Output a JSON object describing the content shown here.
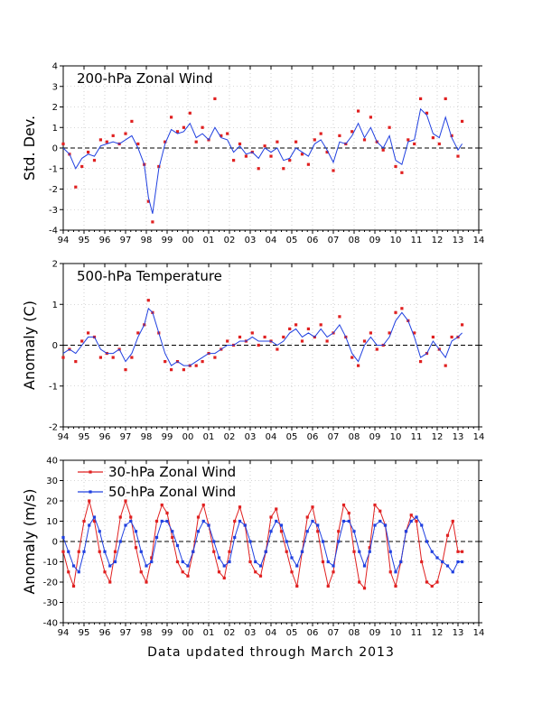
{
  "footer": "Data updated through March 2013",
  "chart_data": [
    {
      "type": "line",
      "title": "200-hPa Zonal Wind",
      "ylabel": "Std. Dev.",
      "xlim": [
        1994,
        2014
      ],
      "ylim": [
        -4,
        4
      ],
      "y_ticks": [
        -4,
        -3,
        -2,
        -1,
        0,
        1,
        2,
        3,
        4
      ],
      "x_tick_labels": [
        "94",
        "95",
        "96",
        "97",
        "98",
        "99",
        "00",
        "01",
        "02",
        "03",
        "04",
        "05",
        "06",
        "07",
        "08",
        "09",
        "10",
        "11",
        "12",
        "13",
        "14"
      ],
      "grid": true,
      "series": [
        {
          "color": "#e02020",
          "style": "points",
          "x": [
            1994.0,
            1994.3,
            1994.6,
            1994.9,
            1995.2,
            1995.5,
            1995.8,
            1996.1,
            1996.4,
            1996.7,
            1997.0,
            1997.3,
            1997.6,
            1997.9,
            1998.1,
            1998.3,
            1998.6,
            1998.9,
            1999.2,
            1999.5,
            1999.8,
            2000.1,
            2000.4,
            2000.7,
            2001.0,
            2001.3,
            2001.6,
            2001.9,
            2002.2,
            2002.5,
            2002.8,
            2003.1,
            2003.4,
            2003.7,
            2004.0,
            2004.3,
            2004.6,
            2004.9,
            2005.2,
            2005.5,
            2005.8,
            2006.1,
            2006.4,
            2006.7,
            2007.0,
            2007.3,
            2007.6,
            2007.9,
            2008.2,
            2008.5,
            2008.8,
            2009.1,
            2009.4,
            2009.7,
            2010.0,
            2010.3,
            2010.6,
            2010.9,
            2011.2,
            2011.5,
            2011.8,
            2012.1,
            2012.4,
            2012.7,
            2013.0,
            2013.2
          ],
          "y": [
            0.2,
            -0.3,
            -1.9,
            -0.9,
            -0.2,
            -0.6,
            0.4,
            0.3,
            0.6,
            0.2,
            0.7,
            1.3,
            0.2,
            -0.8,
            -2.6,
            -3.6,
            -0.9,
            0.3,
            1.5,
            0.8,
            1.0,
            1.7,
            0.3,
            1.0,
            0.4,
            2.4,
            0.6,
            0.7,
            -0.6,
            0.2,
            -0.4,
            -0.2,
            -1.0,
            0.1,
            -0.4,
            0.3,
            -1.0,
            -0.6,
            0.3,
            -0.3,
            -0.8,
            0.4,
            0.7,
            -0.2,
            -1.1,
            0.6,
            0.2,
            0.8,
            1.8,
            0.4,
            1.5,
            0.3,
            -0.1,
            1.0,
            -0.9,
            -1.2,
            0.4,
            0.2,
            2.4,
            1.7,
            0.5,
            0.2,
            2.4,
            0.6,
            -0.4,
            1.3
          ]
        },
        {
          "color": "#2040e0",
          "style": "line",
          "x": [
            1994.0,
            1994.3,
            1994.6,
            1994.9,
            1995.2,
            1995.5,
            1995.8,
            1996.1,
            1996.4,
            1996.7,
            1997.0,
            1997.3,
            1997.6,
            1997.9,
            1998.1,
            1998.3,
            1998.6,
            1998.9,
            1999.2,
            1999.5,
            1999.8,
            2000.1,
            2000.4,
            2000.7,
            2001.0,
            2001.3,
            2001.6,
            2001.9,
            2002.2,
            2002.5,
            2002.8,
            2003.1,
            2003.4,
            2003.7,
            2004.0,
            2004.3,
            2004.6,
            2004.9,
            2005.2,
            2005.5,
            2005.8,
            2006.1,
            2006.4,
            2006.7,
            2007.0,
            2007.3,
            2007.6,
            2007.9,
            2008.2,
            2008.5,
            2008.8,
            2009.1,
            2009.4,
            2009.7,
            2010.0,
            2010.3,
            2010.6,
            2010.9,
            2011.2,
            2011.5,
            2011.8,
            2012.1,
            2012.4,
            2012.7,
            2013.0,
            2013.2
          ],
          "y": [
            0.0,
            -0.3,
            -1.0,
            -0.5,
            -0.3,
            -0.4,
            0.1,
            0.2,
            0.3,
            0.2,
            0.4,
            0.6,
            0.0,
            -0.8,
            -2.4,
            -3.2,
            -1.0,
            0.2,
            0.9,
            0.7,
            0.8,
            1.2,
            0.5,
            0.7,
            0.4,
            1.0,
            0.5,
            0.4,
            -0.2,
            0.1,
            -0.3,
            -0.2,
            -0.5,
            0.0,
            -0.2,
            0.0,
            -0.6,
            -0.5,
            0.0,
            -0.2,
            -0.4,
            0.2,
            0.4,
            -0.1,
            -0.7,
            0.3,
            0.2,
            0.6,
            1.2,
            0.5,
            1.0,
            0.3,
            0.0,
            0.6,
            -0.6,
            -0.8,
            0.3,
            0.4,
            1.9,
            1.6,
            0.7,
            0.5,
            1.5,
            0.5,
            -0.1,
            0.2
          ]
        }
      ]
    },
    {
      "type": "line",
      "title": "500-hPa Temperature",
      "ylabel": "Anomaly (C)",
      "xlim": [
        1994,
        2014
      ],
      "ylim": [
        -2,
        2
      ],
      "y_ticks": [
        -2,
        -1,
        0,
        1,
        2
      ],
      "x_tick_labels": [
        "94",
        "95",
        "96",
        "97",
        "98",
        "99",
        "00",
        "01",
        "02",
        "03",
        "04",
        "05",
        "06",
        "07",
        "08",
        "09",
        "10",
        "11",
        "12",
        "13",
        "14"
      ],
      "grid": true,
      "series": [
        {
          "color": "#e02020",
          "style": "points",
          "x": [
            1994.0,
            1994.3,
            1994.6,
            1994.9,
            1995.2,
            1995.5,
            1995.8,
            1996.1,
            1996.4,
            1996.7,
            1997.0,
            1997.3,
            1997.6,
            1997.9,
            1998.1,
            1998.3,
            1998.6,
            1998.9,
            1999.2,
            1999.5,
            1999.8,
            2000.1,
            2000.4,
            2000.7,
            2001.0,
            2001.3,
            2001.6,
            2001.9,
            2002.2,
            2002.5,
            2002.8,
            2003.1,
            2003.4,
            2003.7,
            2004.0,
            2004.3,
            2004.6,
            2004.9,
            2005.2,
            2005.5,
            2005.8,
            2006.1,
            2006.4,
            2006.7,
            2007.0,
            2007.3,
            2007.6,
            2007.9,
            2008.2,
            2008.5,
            2008.8,
            2009.1,
            2009.4,
            2009.7,
            2010.0,
            2010.3,
            2010.6,
            2010.9,
            2011.2,
            2011.5,
            2011.8,
            2012.1,
            2012.4,
            2012.7,
            2013.0,
            2013.2
          ],
          "y": [
            -0.3,
            -0.1,
            -0.4,
            0.1,
            0.3,
            0.2,
            -0.3,
            -0.2,
            -0.3,
            -0.1,
            -0.6,
            -0.3,
            0.3,
            0.5,
            1.1,
            0.8,
            0.3,
            -0.4,
            -0.6,
            -0.4,
            -0.6,
            -0.5,
            -0.5,
            -0.4,
            -0.2,
            -0.3,
            -0.1,
            0.1,
            0.0,
            0.2,
            0.1,
            0.3,
            0.0,
            0.2,
            0.1,
            -0.1,
            0.2,
            0.4,
            0.5,
            0.1,
            0.4,
            0.2,
            0.5,
            0.1,
            0.3,
            0.7,
            0.2,
            -0.3,
            -0.5,
            0.1,
            0.3,
            -0.1,
            0.0,
            0.3,
            0.8,
            0.9,
            0.6,
            0.3,
            -0.4,
            -0.2,
            0.2,
            -0.1,
            -0.5,
            0.2,
            0.2,
            0.5
          ]
        },
        {
          "color": "#2040e0",
          "style": "line",
          "x": [
            1994.0,
            1994.3,
            1994.6,
            1994.9,
            1995.2,
            1995.5,
            1995.8,
            1996.1,
            1996.4,
            1996.7,
            1997.0,
            1997.3,
            1997.6,
            1997.9,
            1998.1,
            1998.3,
            1998.6,
            1998.9,
            1999.2,
            1999.5,
            1999.8,
            2000.1,
            2000.4,
            2000.7,
            2001.0,
            2001.3,
            2001.6,
            2001.9,
            2002.2,
            2002.5,
            2002.8,
            2003.1,
            2003.4,
            2003.7,
            2004.0,
            2004.3,
            2004.6,
            2004.9,
            2005.2,
            2005.5,
            2005.8,
            2006.1,
            2006.4,
            2006.7,
            2007.0,
            2007.3,
            2007.6,
            2007.9,
            2008.2,
            2008.5,
            2008.8,
            2009.1,
            2009.4,
            2009.7,
            2010.0,
            2010.3,
            2010.6,
            2010.9,
            2011.2,
            2011.5,
            2011.8,
            2012.1,
            2012.4,
            2012.7,
            2013.0,
            2013.2
          ],
          "y": [
            -0.2,
            -0.1,
            -0.2,
            0.0,
            0.2,
            0.2,
            -0.1,
            -0.2,
            -0.2,
            -0.1,
            -0.4,
            -0.2,
            0.2,
            0.5,
            0.9,
            0.8,
            0.3,
            -0.2,
            -0.5,
            -0.4,
            -0.5,
            -0.5,
            -0.4,
            -0.3,
            -0.2,
            -0.2,
            -0.1,
            0.0,
            0.0,
            0.1,
            0.1,
            0.2,
            0.1,
            0.1,
            0.1,
            0.0,
            0.1,
            0.3,
            0.4,
            0.2,
            0.3,
            0.2,
            0.4,
            0.2,
            0.3,
            0.5,
            0.2,
            -0.2,
            -0.4,
            0.0,
            0.2,
            0.0,
            0.0,
            0.2,
            0.6,
            0.8,
            0.6,
            0.2,
            -0.3,
            -0.2,
            0.1,
            -0.1,
            -0.3,
            0.1,
            0.2,
            0.3
          ]
        }
      ]
    },
    {
      "type": "line",
      "title": "",
      "ylabel": "Anomaly (m/s)",
      "xlim": [
        1994,
        2014
      ],
      "ylim": [
        -40,
        40
      ],
      "y_ticks": [
        -40,
        -30,
        -20,
        -10,
        0,
        10,
        20,
        30,
        40
      ],
      "x_tick_labels": [
        "94",
        "95",
        "96",
        "97",
        "98",
        "99",
        "00",
        "01",
        "02",
        "03",
        "04",
        "05",
        "06",
        "07",
        "08",
        "09",
        "10",
        "11",
        "12",
        "13",
        "14"
      ],
      "grid": true,
      "legend": "top-left",
      "series": [
        {
          "name": "30-hPa Zonal Wind",
          "color": "#e02020",
          "style": "line+points",
          "x": [
            1994.0,
            1994.25,
            1994.5,
            1994.75,
            1995.0,
            1995.25,
            1995.5,
            1995.75,
            1996.0,
            1996.25,
            1996.5,
            1996.75,
            1997.0,
            1997.25,
            1997.5,
            1997.75,
            1998.0,
            1998.25,
            1998.5,
            1998.75,
            1999.0,
            1999.25,
            1999.5,
            1999.75,
            2000.0,
            2000.25,
            2000.5,
            2000.75,
            2001.0,
            2001.25,
            2001.5,
            2001.75,
            2002.0,
            2002.25,
            2002.5,
            2002.75,
            2003.0,
            2003.25,
            2003.5,
            2003.75,
            2004.0,
            2004.25,
            2004.5,
            2004.75,
            2005.0,
            2005.25,
            2005.5,
            2005.75,
            2006.0,
            2006.25,
            2006.5,
            2006.75,
            2007.0,
            2007.25,
            2007.5,
            2007.75,
            2008.0,
            2008.25,
            2008.5,
            2008.75,
            2009.0,
            2009.25,
            2009.5,
            2009.75,
            2010.0,
            2010.25,
            2010.5,
            2010.75,
            2011.0,
            2011.25,
            2011.5,
            2011.75,
            2012.0,
            2012.25,
            2012.5,
            2012.75,
            2013.0,
            2013.2
          ],
          "y": [
            -5,
            -15,
            -22,
            -5,
            10,
            20,
            10,
            -5,
            -15,
            -20,
            -5,
            12,
            20,
            12,
            -3,
            -15,
            -20,
            -8,
            10,
            18,
            14,
            2,
            -10,
            -15,
            -17,
            -5,
            12,
            18,
            8,
            -5,
            -15,
            -18,
            -5,
            10,
            17,
            8,
            -10,
            -15,
            -17,
            -5,
            12,
            16,
            5,
            -5,
            -15,
            -22,
            -5,
            12,
            17,
            5,
            -10,
            -22,
            -15,
            5,
            18,
            14,
            -5,
            -20,
            -23,
            -3,
            18,
            15,
            8,
            -15,
            -22,
            -10,
            5,
            13,
            10,
            -10,
            -20,
            -22,
            -20,
            -10,
            3,
            10,
            -5,
            -5
          ]
        },
        {
          "name": "50-hPa Zonal Wind",
          "color": "#2040e0",
          "style": "line+points",
          "x": [
            1994.0,
            1994.25,
            1994.5,
            1994.75,
            1995.0,
            1995.25,
            1995.5,
            1995.75,
            1996.0,
            1996.25,
            1996.5,
            1996.75,
            1997.0,
            1997.25,
            1997.5,
            1997.75,
            1998.0,
            1998.25,
            1998.5,
            1998.75,
            1999.0,
            1999.25,
            1999.5,
            1999.75,
            2000.0,
            2000.25,
            2000.5,
            2000.75,
            2001.0,
            2001.25,
            2001.5,
            2001.75,
            2002.0,
            2002.25,
            2002.5,
            2002.75,
            2003.0,
            2003.25,
            2003.5,
            2003.75,
            2004.0,
            2004.25,
            2004.5,
            2004.75,
            2005.0,
            2005.25,
            2005.5,
            2005.75,
            2006.0,
            2006.25,
            2006.5,
            2006.75,
            2007.0,
            2007.25,
            2007.5,
            2007.75,
            2008.0,
            2008.25,
            2008.5,
            2008.75,
            2009.0,
            2009.25,
            2009.5,
            2009.75,
            2010.0,
            2010.25,
            2010.5,
            2010.75,
            2011.0,
            2011.25,
            2011.5,
            2011.75,
            2012.0,
            2012.25,
            2012.5,
            2012.75,
            2013.0,
            2013.2
          ],
          "y": [
            2,
            -5,
            -12,
            -15,
            -5,
            8,
            12,
            5,
            -5,
            -12,
            -10,
            0,
            8,
            10,
            5,
            -5,
            -12,
            -10,
            2,
            10,
            10,
            5,
            -2,
            -10,
            -12,
            -5,
            5,
            10,
            8,
            0,
            -8,
            -12,
            -10,
            2,
            10,
            8,
            0,
            -10,
            -12,
            -5,
            5,
            10,
            8,
            0,
            -8,
            -12,
            -5,
            5,
            10,
            8,
            0,
            -10,
            -12,
            0,
            10,
            10,
            5,
            -5,
            -12,
            -5,
            8,
            10,
            8,
            -5,
            -15,
            -10,
            5,
            10,
            12,
            8,
            0,
            -5,
            -8,
            -10,
            -12,
            -15,
            -10,
            -10
          ]
        }
      ]
    }
  ]
}
